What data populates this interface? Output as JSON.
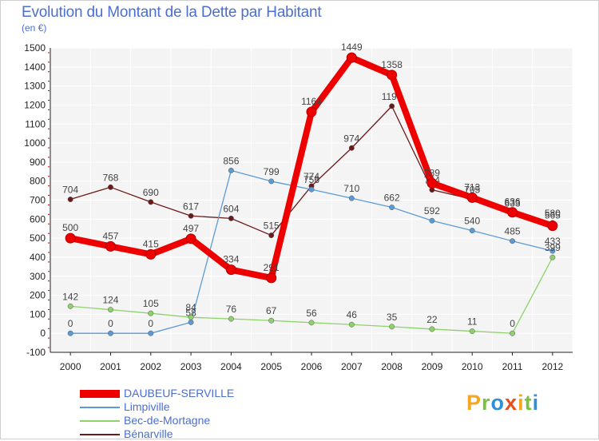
{
  "title": "Evolution du Montant de la Dette par Habitant",
  "subtitle": "(en €)",
  "logo": {
    "text": "Proxiti",
    "colors": [
      "#f5a623",
      "#7ac143",
      "#2f8fd8",
      "#e94e1b",
      "#f5a623",
      "#7ac143",
      "#2f8fd8"
    ]
  },
  "chart_data": {
    "type": "line",
    "title": "Evolution du Montant de la Dette par Habitant",
    "ylabel": "(en €)",
    "xlabel": "",
    "ylim": [
      -100,
      1500
    ],
    "yticks": [
      -100,
      0,
      100,
      200,
      300,
      400,
      500,
      600,
      700,
      800,
      900,
      1000,
      1100,
      1200,
      1300,
      1400,
      1500
    ],
    "categories": [
      "2000",
      "2001",
      "2002",
      "2003",
      "2004",
      "2005",
      "2006",
      "2007",
      "2008",
      "2009",
      "2010",
      "2011",
      "2012"
    ],
    "grid": true,
    "legend_position": "bottom-left",
    "series": [
      {
        "name": "Bénarville",
        "color": "#6b1a1a",
        "values": [
          704,
          768,
          690,
          617,
          604,
          515,
          774,
          974,
          1194,
          754,
          705,
          633,
          580
        ]
      },
      {
        "name": "Limpiville",
        "color": "#5b9bd5",
        "values": [
          0,
          0,
          0,
          58,
          856,
          799,
          756,
          710,
          662,
          592,
          540,
          485,
          433
        ]
      },
      {
        "name": "Bec-de-Mortagne",
        "color": "#8fd16a",
        "values": [
          142,
          124,
          105,
          84,
          76,
          67,
          56,
          46,
          35,
          22,
          11,
          0,
          399
        ]
      },
      {
        "name": "DAUBEUF-SERVILLE",
        "color": "#ee0000",
        "values": [
          500,
          457,
          415,
          497,
          334,
          291,
          1164,
          1449,
          1358,
          789,
          713,
          636,
          565
        ]
      }
    ],
    "data_labels": [
      {
        "series": "Bénarville",
        "labels": [
          "704",
          "768",
          "690",
          "617",
          "604",
          "515",
          "774",
          "974",
          "1194",
          "754",
          "705",
          "633",
          "580"
        ]
      },
      {
        "series": "Limpiville",
        "labels": [
          "0",
          "0",
          "0",
          "58",
          "856",
          "799",
          "756",
          "710",
          "662",
          "592",
          "540",
          "485",
          "433"
        ]
      },
      {
        "series": "Bec-de-Mortagne",
        "labels": [
          "142",
          "124",
          "105",
          "84",
          "76",
          "67",
          "56",
          "46",
          "35",
          "22",
          "11",
          "0",
          "399"
        ]
      },
      {
        "series": "DAUBEUF-SERVILLE",
        "labels": [
          "500",
          "457",
          "415",
          "497",
          "334",
          "291",
          "1164",
          "1449",
          "1358",
          "789",
          "713",
          "636",
          "565"
        ]
      }
    ]
  },
  "legend": [
    {
      "label": "DAUBEUF-SERVILLE",
      "color": "#ee0000"
    },
    {
      "label": "Limpiville",
      "color": "#5b9bd5"
    },
    {
      "label": "Bec-de-Mortagne",
      "color": "#8fd16a"
    },
    {
      "label": "Bénarville",
      "color": "#6b1a1a"
    }
  ]
}
